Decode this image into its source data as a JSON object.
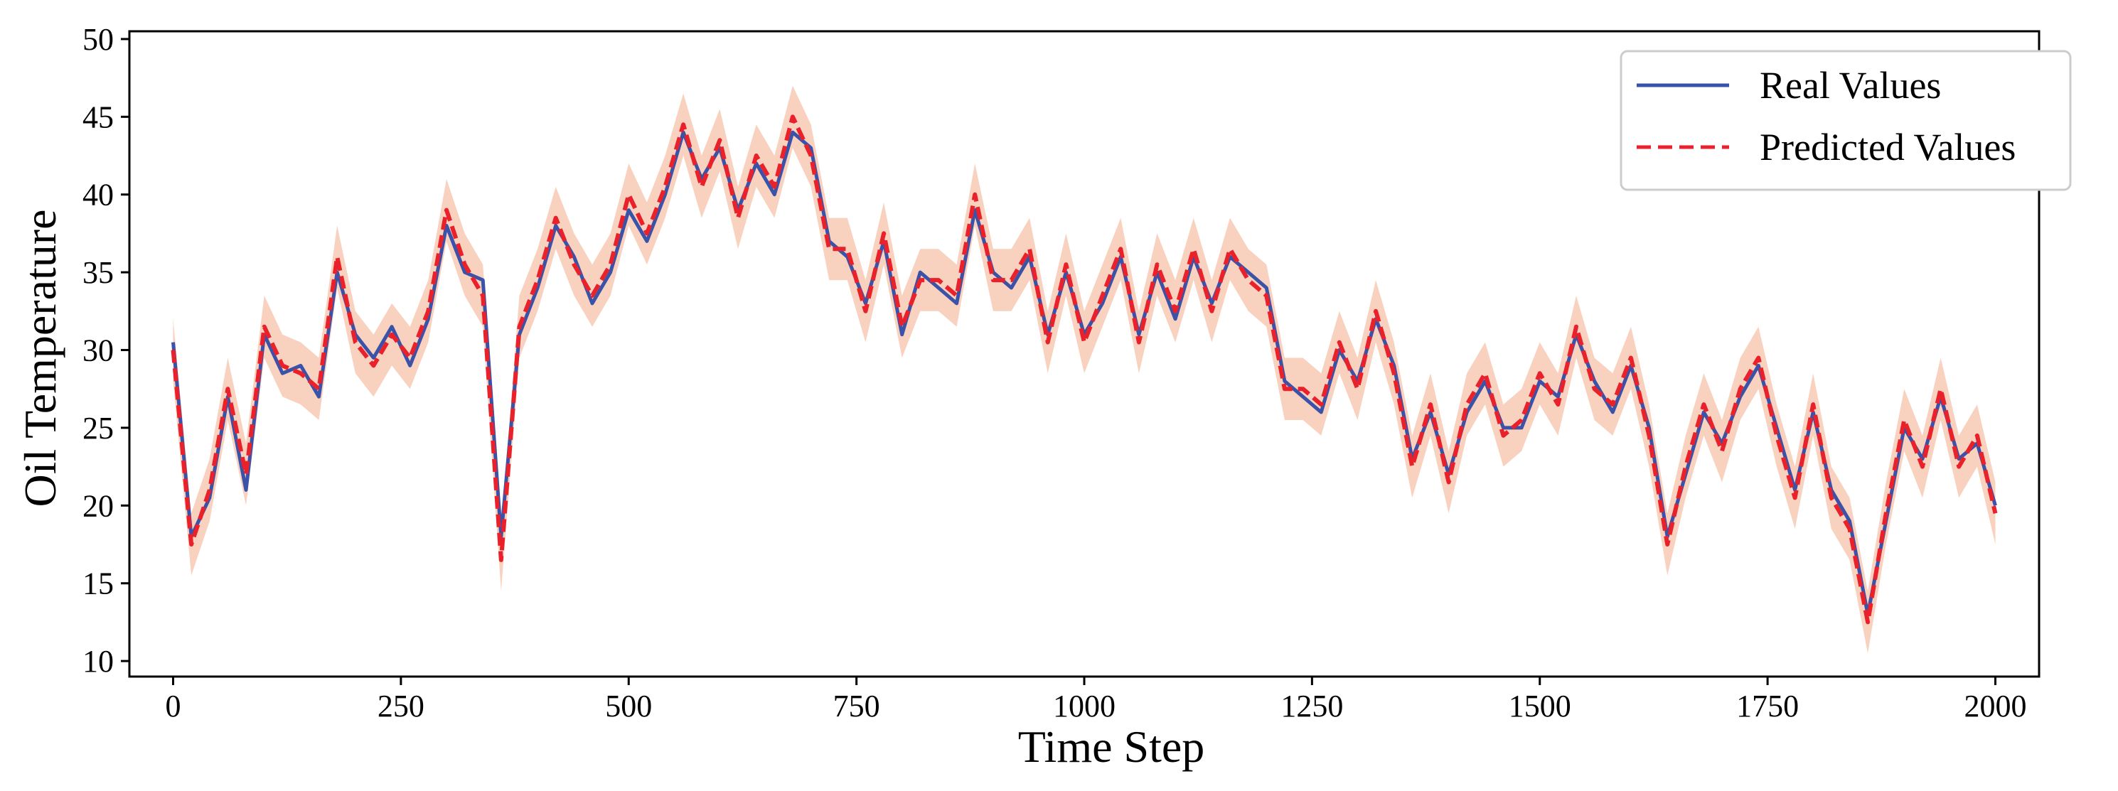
{
  "chart_data": {
    "type": "line",
    "title": "",
    "xlabel": "Time Step",
    "ylabel": "Oil Temperature",
    "xlim": [
      -48,
      2048
    ],
    "ylim": [
      9,
      50.5
    ],
    "xticks": [
      0,
      250,
      500,
      750,
      1000,
      1250,
      1500,
      1750,
      2000
    ],
    "yticks": [
      10,
      15,
      20,
      25,
      30,
      35,
      40,
      45,
      50
    ],
    "grid": false,
    "legend_position": "top-right",
    "band": {
      "color": "#f8c9b4",
      "half_width": 2
    },
    "series": [
      {
        "name": "Real Values",
        "color": "#3a52a8",
        "style": "solid"
      },
      {
        "name": "Predicted Values",
        "color": "#e8212b",
        "style": "dashed"
      }
    ],
    "x": [
      0,
      20,
      40,
      60,
      80,
      100,
      120,
      140,
      160,
      180,
      200,
      220,
      240,
      260,
      280,
      300,
      320,
      340,
      360,
      380,
      400,
      420,
      440,
      460,
      480,
      500,
      520,
      540,
      560,
      580,
      600,
      620,
      640,
      660,
      680,
      700,
      720,
      740,
      760,
      780,
      800,
      820,
      840,
      860,
      880,
      900,
      920,
      940,
      960,
      980,
      1000,
      1020,
      1040,
      1060,
      1080,
      1100,
      1120,
      1140,
      1160,
      1180,
      1200,
      1220,
      1240,
      1260,
      1280,
      1300,
      1320,
      1340,
      1360,
      1380,
      1400,
      1420,
      1440,
      1460,
      1480,
      1500,
      1520,
      1540,
      1560,
      1580,
      1600,
      1620,
      1640,
      1660,
      1680,
      1700,
      1720,
      1740,
      1760,
      1780,
      1800,
      1820,
      1840,
      1860,
      1880,
      1900,
      1920,
      1940,
      1960,
      1980,
      2000
    ],
    "real_values": [
      30.5,
      18.0,
      20.5,
      27.0,
      21.0,
      31.0,
      28.5,
      29.0,
      27.0,
      35.0,
      31.0,
      29.5,
      31.5,
      29.0,
      32.0,
      38.0,
      35.0,
      34.5,
      18.0,
      31.0,
      34.0,
      38.0,
      36.0,
      33.0,
      35.0,
      39.0,
      37.0,
      40.0,
      44.0,
      41.0,
      43.0,
      39.0,
      42.0,
      40.0,
      44.0,
      43.0,
      37.0,
      36.0,
      33.0,
      37.0,
      31.0,
      35.0,
      34.0,
      33.0,
      39.0,
      35.0,
      34.0,
      36.0,
      31.0,
      35.0,
      31.0,
      33.0,
      36.0,
      31.0,
      35.0,
      32.0,
      36.0,
      33.0,
      36.0,
      35.0,
      34.0,
      28.0,
      27.0,
      26.0,
      30.0,
      28.0,
      32.0,
      29.0,
      23.0,
      26.0,
      22.0,
      26.0,
      28.0,
      25.0,
      25.0,
      28.0,
      27.0,
      31.0,
      28.0,
      26.0,
      29.0,
      25.0,
      18.0,
      22.0,
      26.0,
      24.0,
      27.0,
      29.0,
      25.0,
      21.0,
      26.0,
      21.0,
      19.0,
      13.0,
      19.0,
      25.0,
      23.0,
      27.0,
      23.0,
      24.0,
      20.0
    ],
    "predicted_values": [
      30.0,
      17.5,
      21.0,
      27.5,
      22.0,
      31.5,
      29.0,
      28.5,
      27.5,
      36.0,
      30.5,
      29.0,
      31.0,
      29.5,
      32.5,
      39.0,
      35.5,
      33.5,
      16.5,
      31.5,
      34.5,
      38.5,
      35.5,
      33.5,
      35.5,
      40.0,
      37.5,
      40.5,
      44.5,
      40.5,
      43.5,
      38.5,
      42.5,
      40.5,
      45.0,
      42.5,
      36.5,
      36.5,
      32.5,
      37.5,
      31.5,
      34.5,
      34.5,
      33.5,
      40.0,
      34.5,
      34.5,
      36.5,
      30.5,
      35.5,
      30.5,
      33.5,
      36.5,
      30.5,
      35.5,
      32.5,
      36.5,
      32.5,
      36.5,
      34.5,
      33.5,
      27.5,
      27.5,
      26.5,
      30.5,
      27.5,
      32.5,
      28.5,
      22.5,
      26.5,
      21.5,
      26.5,
      28.5,
      24.5,
      25.5,
      28.5,
      26.5,
      31.5,
      27.5,
      26.5,
      29.5,
      24.5,
      17.5,
      22.5,
      26.5,
      23.5,
      27.5,
      29.5,
      24.5,
      20.5,
      26.5,
      20.5,
      18.5,
      12.5,
      19.5,
      25.5,
      22.5,
      27.5,
      22.5,
      24.5,
      19.5
    ]
  }
}
